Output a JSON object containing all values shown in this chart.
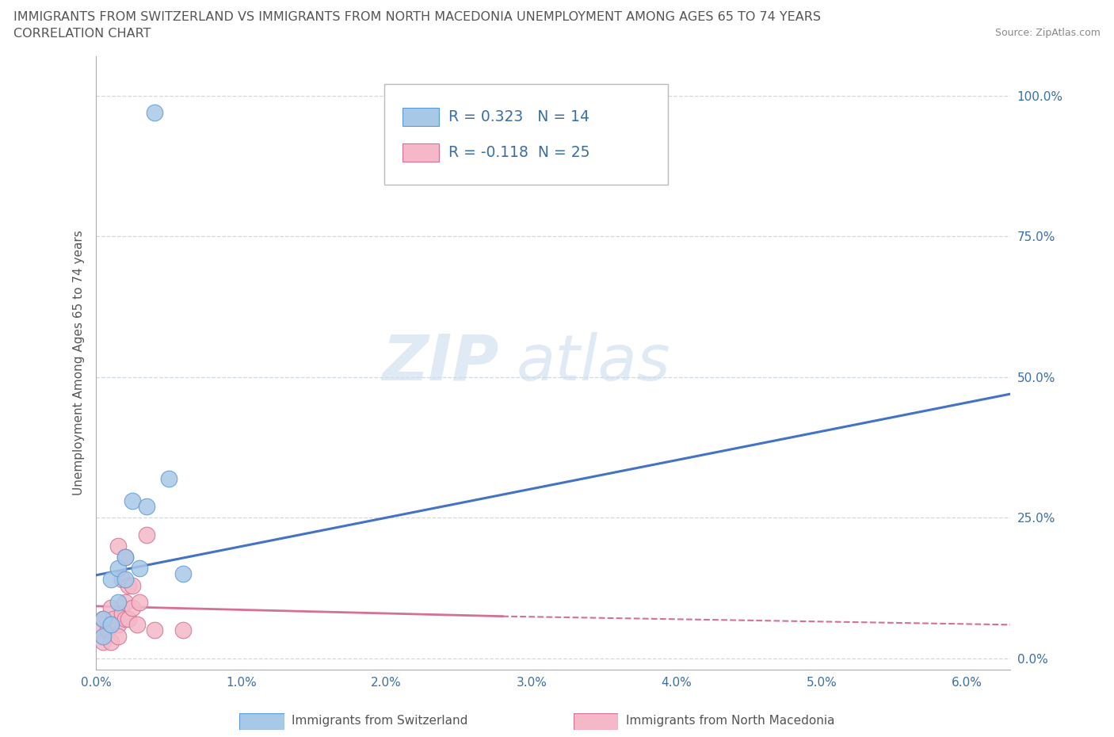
{
  "title_line1": "IMMIGRANTS FROM SWITZERLAND VS IMMIGRANTS FROM NORTH MACEDONIA UNEMPLOYMENT AMONG AGES 65 TO 74 YEARS",
  "title_line2": "CORRELATION CHART",
  "source_text": "Source: ZipAtlas.com",
  "x_tick_vals": [
    0.0,
    0.01,
    0.02,
    0.03,
    0.04,
    0.05,
    0.06
  ],
  "y_tick_vals": [
    0.0,
    0.25,
    0.5,
    0.75,
    1.0
  ],
  "xlim": [
    0.0,
    0.063
  ],
  "ylim": [
    -0.02,
    1.07
  ],
  "switzerland_color": "#a8c8e8",
  "switzerland_edge_color": "#5b9bd5",
  "north_macedonia_color": "#f4b8c8",
  "north_macedonia_edge_color": "#d47090",
  "trendline_switzerland_color": "#4472c4",
  "trendline_north_macedonia_color": "#d47090",
  "legend_r_switzerland": "R = 0.323",
  "legend_n_switzerland": "N = 14",
  "legend_r_north_macedonia": "R = -0.118",
  "legend_n_north_macedonia": "N = 25",
  "label_switzerland": "Immigrants from Switzerland",
  "label_north_macedonia": "Immigrants from North Macedonia",
  "watermark_zip": "ZIP",
  "watermark_atlas": "atlas",
  "switzerland_x": [
    0.0005,
    0.0005,
    0.001,
    0.001,
    0.0015,
    0.0015,
    0.002,
    0.002,
    0.0025,
    0.003,
    0.0035,
    0.004,
    0.005,
    0.006
  ],
  "switzerland_y": [
    0.04,
    0.07,
    0.06,
    0.14,
    0.1,
    0.16,
    0.14,
    0.18,
    0.28,
    0.16,
    0.27,
    0.97,
    0.32,
    0.15
  ],
  "north_macedonia_x": [
    0.0003,
    0.0005,
    0.0005,
    0.0008,
    0.001,
    0.001,
    0.001,
    0.0012,
    0.0015,
    0.0015,
    0.0015,
    0.0018,
    0.0018,
    0.002,
    0.002,
    0.002,
    0.0022,
    0.0022,
    0.0025,
    0.0025,
    0.0028,
    0.003,
    0.0035,
    0.004,
    0.006
  ],
  "north_macedonia_y": [
    0.05,
    0.03,
    0.07,
    0.05,
    0.06,
    0.03,
    0.09,
    0.07,
    0.06,
    0.2,
    0.04,
    0.08,
    0.14,
    0.07,
    0.1,
    0.18,
    0.07,
    0.13,
    0.09,
    0.13,
    0.06,
    0.1,
    0.22,
    0.05,
    0.05
  ],
  "background_color": "#ffffff",
  "grid_color": "#d0d8e0",
  "title_color": "#555555",
  "legend_text_color": "#3a6ea5"
}
